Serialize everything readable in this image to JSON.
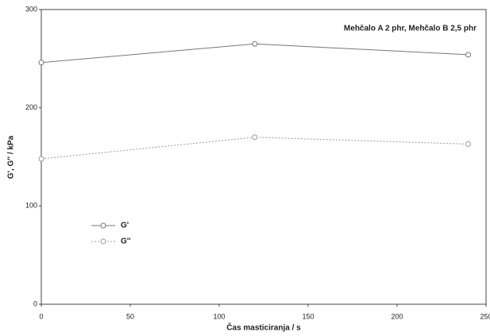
{
  "chart_data": {
    "type": "line",
    "annotation": "Mehčalo A 2 phr, Mehčalo B 2,5 phr",
    "x_label": "Čas masticiranja / s",
    "y_label": "G', G'' / kPa",
    "x": [
      0,
      120,
      240
    ],
    "series": [
      {
        "name": "G'",
        "color": "#777777",
        "dash": "solid",
        "values": [
          246,
          265,
          254
        ]
      },
      {
        "name": "G''",
        "color": "#999999",
        "dash": "dotted",
        "values": [
          148,
          170,
          163
        ]
      }
    ],
    "xlim": [
      0,
      250
    ],
    "xticks": [
      0,
      50,
      100,
      150,
      200,
      250
    ],
    "ylim": [
      0,
      300
    ],
    "yticks": [
      0,
      100,
      200,
      300
    ],
    "legend": "lower-left"
  }
}
